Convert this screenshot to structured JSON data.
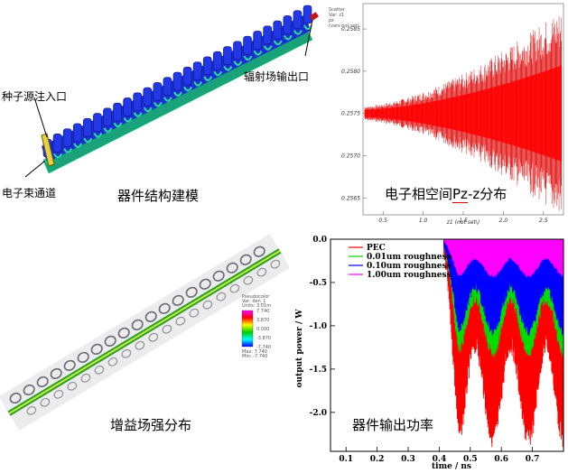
{
  "top_left": {
    "caption": "器件结构建模",
    "label_seed": "种子源注入口",
    "label_beam": "电子束通道",
    "label_output": "辐射场输出口"
  },
  "top_right": {
    "caption_prefix": "电子相空间",
    "caption_pz": "Pz",
    "caption_suffix": "-z分布",
    "legend_lines": [
      "Scatter",
      "Var: z1",
      "pz",
      "(vars not set)"
    ],
    "chart_data": {
      "type": "scatter",
      "xlabel": "z1 (not set\\)",
      "x_ticks": [
        "0.5",
        "1.0",
        "1.5",
        "2.0",
        "2.5"
      ],
      "y_ticks": [
        "0.2585",
        "0.2580",
        "0.2575",
        "0.2570",
        "0.2565"
      ],
      "ylim": [
        0.2563,
        0.2588
      ],
      "xlim": [
        0.25,
        2.75
      ],
      "center": 0.2575,
      "color": "#e00000"
    }
  },
  "bottom_left": {
    "caption": "增益场强分布",
    "legend_lines": [
      "Pseudocolor",
      "Var: den_1",
      "Units: 3.01m",
      "-7.740",
      "-3.870",
      "0.000",
      "3.870",
      "7.740",
      "Max: 7.740",
      "Min: -7.740"
    ]
  },
  "bottom_right": {
    "caption": "器件输出功率",
    "chart_data": {
      "type": "line",
      "xlabel": "time / ns",
      "ylabel": "output power / W",
      "x_ticks": [
        "0.1",
        "0.2",
        "0.3",
        "0.4",
        "0.5",
        "0.6",
        "0.7"
      ],
      "y_ticks": [
        "0.0",
        "-0.5",
        "-1.0",
        "-1.5",
        "-2.0"
      ],
      "xlim": [
        0.05,
        0.8
      ],
      "ylim": [
        -2.45,
        0.0
      ],
      "series": [
        {
          "name": "PEC",
          "color": "#ff0000"
        },
        {
          "name": "0.01um roughness",
          "color": "#00dd00"
        },
        {
          "name": "0.10um roughness",
          "color": "#0000ff"
        },
        {
          "name": "1.00um roughness",
          "color": "#ff00ff"
        }
      ]
    }
  }
}
